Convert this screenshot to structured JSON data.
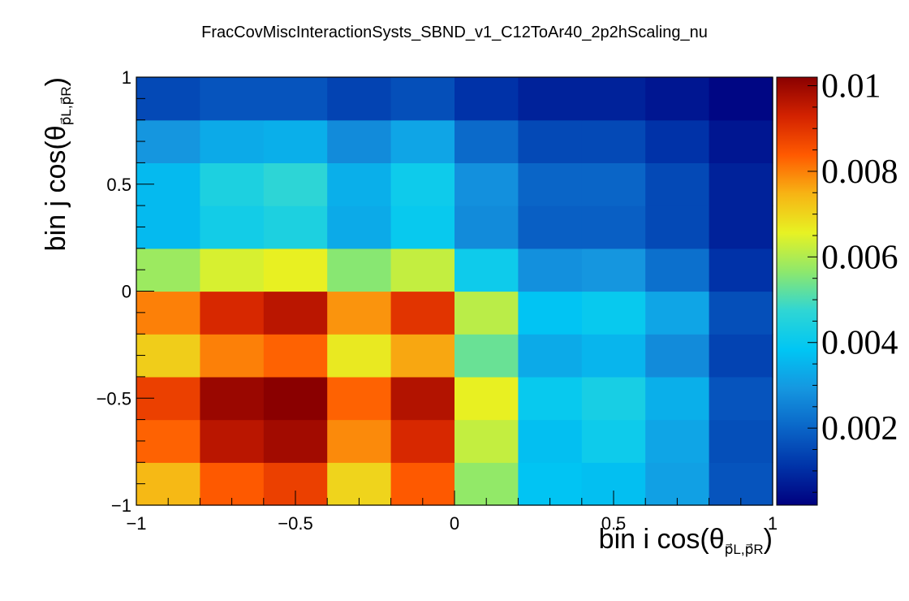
{
  "chart_data": {
    "type": "heatmap",
    "title": "FracCovMiscInteractionSysts_SBND_v1_C12ToAr40_2p2hScaling_nu",
    "xlabel": {
      "prefix": "bin i cos(θ",
      "sub": "p⃗L,p⃗R",
      "suffix": ")"
    },
    "ylabel": {
      "prefix": "bin j cos(θ",
      "sub": "p⃗L,p⃗R",
      "suffix": ")"
    },
    "xlim": [
      -1,
      1
    ],
    "ylim": [
      -1,
      1
    ],
    "zlim": [
      0.0002,
      0.0102
    ],
    "x_ticks": [
      {
        "value": -1,
        "label": "−1"
      },
      {
        "value": -0.5,
        "label": "−0.5"
      },
      {
        "value": 0,
        "label": "0"
      },
      {
        "value": 0.5,
        "label": "0.5"
      },
      {
        "value": 1,
        "label": "1"
      }
    ],
    "y_ticks": [
      {
        "value": -1,
        "label": "−1"
      },
      {
        "value": -0.5,
        "label": "−0.5"
      },
      {
        "value": 0,
        "label": "0"
      },
      {
        "value": 0.5,
        "label": "0.5"
      },
      {
        "value": 1,
        "label": "1"
      }
    ],
    "colorbar_ticks": [
      {
        "value": 0.002,
        "label": "0.002"
      },
      {
        "value": 0.004,
        "label": "0.004"
      },
      {
        "value": 0.006,
        "label": "0.006"
      },
      {
        "value": 0.008,
        "label": "0.008"
      },
      {
        "value": 0.01,
        "label": "0.01"
      }
    ],
    "x_bin_edges": [
      -1,
      -0.8,
      -0.6,
      -0.4,
      -0.2,
      0,
      0.2,
      0.4,
      0.6,
      0.8,
      1
    ],
    "y_bin_edges": [
      -1,
      -0.8,
      -0.6,
      -0.4,
      -0.2,
      0,
      0.2,
      0.4,
      0.6,
      0.8,
      1
    ],
    "z_rows_bottom_to_top": [
      [
        0.0074,
        0.0084,
        0.0088,
        0.007,
        0.0084,
        0.0057,
        0.0038,
        0.0037,
        0.0031,
        0.0017
      ],
      [
        0.0083,
        0.0096,
        0.0099,
        0.0079,
        0.0092,
        0.0062,
        0.0037,
        0.0041,
        0.0032,
        0.0016
      ],
      [
        0.0088,
        0.01,
        0.0102,
        0.0083,
        0.0097,
        0.0066,
        0.004,
        0.0043,
        0.0034,
        0.0017
      ],
      [
        0.0071,
        0.008,
        0.0083,
        0.0067,
        0.0076,
        0.0053,
        0.0033,
        0.0035,
        0.0027,
        0.0014
      ],
      [
        0.008,
        0.0092,
        0.0096,
        0.0078,
        0.009,
        0.0061,
        0.0038,
        0.004,
        0.0032,
        0.0016
      ],
      [
        0.0058,
        0.0064,
        0.0066,
        0.0056,
        0.0062,
        0.0041,
        0.0028,
        0.0029,
        0.0022,
        0.0011
      ],
      [
        0.0036,
        0.0042,
        0.0044,
        0.0033,
        0.004,
        0.0027,
        0.0019,
        0.0019,
        0.0015,
        0.0008
      ],
      [
        0.0036,
        0.0044,
        0.0047,
        0.0034,
        0.0041,
        0.0028,
        0.002,
        0.002,
        0.0015,
        0.0008
      ],
      [
        0.0029,
        0.0033,
        0.0034,
        0.0027,
        0.0032,
        0.0021,
        0.0015,
        0.0015,
        0.0011,
        0.0006
      ],
      [
        0.0015,
        0.0017,
        0.0017,
        0.0014,
        0.0016,
        0.0011,
        0.0008,
        0.0008,
        0.0006,
        0.0003
      ]
    ],
    "palette": [
      "#00007f",
      "#0033a8",
      "#0a66c8",
      "#1597e0",
      "#00c6f4",
      "#2fd6d4",
      "#8ee86c",
      "#e7f223",
      "#f7b414",
      "#ff5a00",
      "#d32200",
      "#8a0000"
    ],
    "grid": false,
    "legend": "colorbar-right"
  }
}
